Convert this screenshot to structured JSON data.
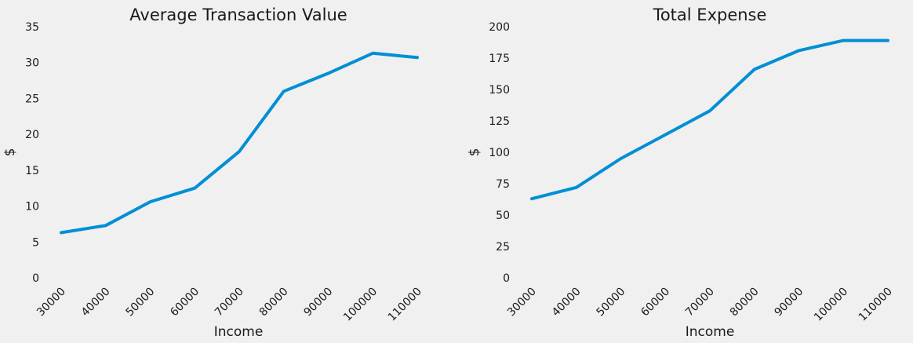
{
  "chart_data": [
    {
      "type": "line",
      "title": "Average Transaction Value",
      "xlabel": "Income",
      "ylabel": "$",
      "x": [
        30000,
        40000,
        50000,
        60000,
        70000,
        80000,
        90000,
        100000,
        110000
      ],
      "x_tick_labels": [
        "30000",
        "40000",
        "50000",
        "60000",
        "70000",
        "80000",
        "90000",
        "100000",
        "110000"
      ],
      "y_ticks": [
        0,
        5,
        10,
        15,
        20,
        25,
        30,
        35
      ],
      "ylim": [
        0,
        35
      ],
      "grid": false,
      "color": "#008fd5",
      "series": [
        {
          "values": [
            6.3,
            7.3,
            10.6,
            12.5,
            17.6,
            26.0,
            28.5,
            31.3,
            30.7
          ]
        }
      ]
    },
    {
      "type": "line",
      "title": "Total Expense",
      "xlabel": "Income",
      "ylabel": "$",
      "x": [
        30000,
        40000,
        50000,
        60000,
        70000,
        80000,
        90000,
        100000,
        110000
      ],
      "x_tick_labels": [
        "30000",
        "40000",
        "50000",
        "60000",
        "70000",
        "80000",
        "90000",
        "100000",
        "110000"
      ],
      "y_ticks": [
        0,
        25,
        50,
        75,
        100,
        125,
        150,
        175,
        200
      ],
      "ylim": [
        0,
        200
      ],
      "grid": false,
      "color": "#008fd5",
      "series": [
        {
          "values": [
            63,
            72,
            95,
            114,
            133,
            166,
            181,
            189,
            189
          ]
        }
      ]
    }
  ]
}
